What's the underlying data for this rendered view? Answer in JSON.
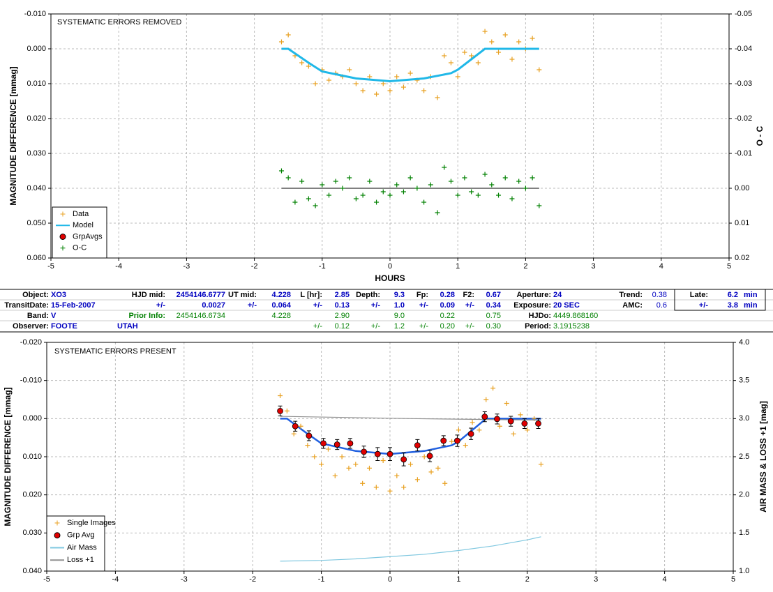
{
  "chart_data": [
    {
      "type": "scatter",
      "title": "SYSTEMATIC ERRORS REMOVED",
      "y_label": "MAGNITUDE DIFFERENCE [mmag]",
      "y2_label": "O - C",
      "x_label": "HOURS",
      "xlim": [
        -5,
        5
      ],
      "xticks": [
        -5,
        -4,
        -3,
        -2,
        -1,
        0,
        1,
        2,
        3,
        4,
        5
      ],
      "ylim": [
        -0.01,
        0.06
      ],
      "yticks": [
        {
          "value": -0.01,
          "label": "-0.010"
        },
        {
          "value": 0,
          "label": "0.000"
        },
        {
          "value": 0.01,
          "label": "0.010"
        },
        {
          "value": 0.02,
          "label": "0.020"
        },
        {
          "value": 0.03,
          "label": "0.030"
        },
        {
          "value": 0.04,
          "label": "0.040"
        },
        {
          "value": 0.05,
          "label": "0.050"
        },
        {
          "value": 0.06,
          "label": "0.060"
        }
      ],
      "y2lim": [
        -0.05,
        0.02
      ],
      "y2ticks": [
        {
          "value": -0.05,
          "label": "-0.05"
        },
        {
          "value": -0.04,
          "label": "-0.04"
        },
        {
          "value": -0.03,
          "label": "-0.03"
        },
        {
          "value": -0.02,
          "label": "-0.02"
        },
        {
          "value": -0.01,
          "label": "-0.01"
        },
        {
          "value": 0,
          "label": "0.00"
        },
        {
          "value": 0.01,
          "label": "0.01"
        },
        {
          "value": 0.02,
          "label": "0.02"
        }
      ],
      "grid": true,
      "legend": "lower left",
      "zero_line": {
        "axis": "y2",
        "value": 0,
        "color": "#000000"
      },
      "series": [
        {
          "name": "Data",
          "marker": "plus",
          "color": "#e8a020",
          "x": [
            -1.6,
            -1.5,
            -1.4,
            -1.3,
            -1.2,
            -1.1,
            -1.0,
            -0.9,
            -0.8,
            -0.7,
            -0.6,
            -0.5,
            -0.4,
            -0.3,
            -0.2,
            -0.1,
            0.0,
            0.1,
            0.2,
            0.3,
            0.4,
            0.5,
            0.6,
            0.7,
            0.8,
            0.9,
            1.0,
            1.1,
            1.2,
            1.3,
            1.4,
            1.5,
            1.6,
            1.7,
            1.8,
            1.9,
            2.0,
            2.1,
            2.2
          ],
          "values": [
            -0.002,
            -0.004,
            0.002,
            0.004,
            0.005,
            0.01,
            0.006,
            0.009,
            0.007,
            0.008,
            0.006,
            0.01,
            0.012,
            0.008,
            0.013,
            0.01,
            0.012,
            0.008,
            0.011,
            0.007,
            0.009,
            0.012,
            0.008,
            0.014,
            0.002,
            0.004,
            0.008,
            0.001,
            0.002,
            0.004,
            -0.005,
            -0.002,
            0.001,
            -0.004,
            0.003,
            -0.002,
            0,
            -0.003,
            0.006
          ]
        },
        {
          "name": "Model",
          "marker": "line",
          "color": "#20b8e8",
          "x": [
            -1.6,
            -1.5,
            -1.2,
            -1.0,
            -0.5,
            0,
            0.5,
            0.9,
            1.0,
            1.2,
            1.4,
            2.2
          ],
          "values": [
            0,
            0,
            0.004,
            0.0065,
            0.0085,
            0.0093,
            0.0085,
            0.007,
            0.006,
            0.003,
            0,
            0
          ]
        },
        {
          "name": "GrpAvgs",
          "marker": "circle",
          "color": "#e00000",
          "x": [],
          "values": []
        },
        {
          "name": "O-C",
          "marker": "plus",
          "color": "#008000",
          "axis": "y2",
          "x": [
            -1.6,
            -1.5,
            -1.4,
            -1.3,
            -1.2,
            -1.1,
            -1.0,
            -0.9,
            -0.8,
            -0.7,
            -0.6,
            -0.5,
            -0.4,
            -0.3,
            -0.2,
            -0.1,
            0.0,
            0.1,
            0.2,
            0.3,
            0.4,
            0.5,
            0.6,
            0.7,
            0.8,
            0.9,
            1.0,
            1.1,
            1.2,
            1.3,
            1.4,
            1.5,
            1.6,
            1.7,
            1.8,
            1.9,
            2.0,
            2.1,
            2.2
          ],
          "values": [
            -0.005,
            -0.003,
            0.004,
            -0.002,
            0.003,
            0.005,
            -0.001,
            0.002,
            -0.002,
            0,
            -0.003,
            0.003,
            0.002,
            -0.002,
            0.004,
            0.001,
            0.002,
            -0.001,
            0.001,
            -0.003,
            0,
            0.004,
            -0.001,
            0.007,
            -0.006,
            -0.002,
            0.002,
            -0.003,
            0.001,
            0.002,
            -0.004,
            -0.001,
            0.002,
            -0.003,
            0.003,
            -0.002,
            0,
            -0.003,
            0.005
          ]
        }
      ]
    },
    {
      "type": "scatter",
      "title": "SYSTEMATIC ERRORS PRESENT",
      "y_label": "MAGNITUDE DIFFERENCE [mmag]",
      "y2_label": "AIR MASS & LOSS +1 [mag]",
      "xlim": [
        -5,
        5
      ],
      "xticks": [
        -5,
        -4,
        -3,
        -2,
        -1,
        0,
        1,
        2,
        3,
        4,
        5
      ],
      "ylim": [
        -0.02,
        0.04
      ],
      "yticks": [
        {
          "value": -0.02,
          "label": "-0.020"
        },
        {
          "value": -0.01,
          "label": "-0.010"
        },
        {
          "value": 0,
          "label": "0.000"
        },
        {
          "value": 0.01,
          "label": "0.010"
        },
        {
          "value": 0.02,
          "label": "0.020"
        },
        {
          "value": 0.03,
          "label": "0.030"
        },
        {
          "value": 0.04,
          "label": "0.040"
        }
      ],
      "y2lim": [
        4.0,
        1.0
      ],
      "y2ticks": [
        {
          "value": 4.0,
          "label": "4.0"
        },
        {
          "value": 3.5,
          "label": "3.5"
        },
        {
          "value": 3.0,
          "label": "3.0"
        },
        {
          "value": 2.5,
          "label": "2.5"
        },
        {
          "value": 2.0,
          "label": "2.0"
        },
        {
          "value": 1.5,
          "label": "1.5"
        },
        {
          "value": 1.0,
          "label": "1.0"
        }
      ],
      "grid": true,
      "legend": "lower left",
      "model": {
        "color": "#2060e0",
        "x": [
          -1.6,
          -1.5,
          -1.2,
          -1.0,
          -0.5,
          0,
          0.5,
          0.9,
          1.0,
          1.2,
          1.4,
          2.2
        ],
        "values": [
          0,
          0,
          0.004,
          0.0065,
          0.0085,
          0.0093,
          0.0085,
          0.007,
          0.006,
          0.003,
          0,
          0
        ]
      },
      "series": [
        {
          "name": "Single Images",
          "marker": "plus",
          "color": "#e8a020",
          "x": [
            -1.6,
            -1.5,
            -1.4,
            -1.3,
            -1.2,
            -1.1,
            -1.0,
            -0.9,
            -0.8,
            -0.7,
            -0.6,
            -0.5,
            -0.4,
            -0.3,
            -0.2,
            -0.1,
            0.0,
            0.1,
            0.2,
            0.3,
            0.4,
            0.5,
            0.6,
            0.7,
            0.8,
            0.9,
            1.0,
            1.1,
            1.2,
            1.3,
            1.4,
            1.5,
            1.6,
            1.7,
            1.8,
            1.9,
            2.0,
            2.1,
            2.2
          ],
          "values": [
            -0.006,
            -0.002,
            0.004,
            0.002,
            0.007,
            0.01,
            0.012,
            0.008,
            0.015,
            0.01,
            0.013,
            0.012,
            0.017,
            0.013,
            0.018,
            0.011,
            0.019,
            0.015,
            0.018,
            0.012,
            0.016,
            0.01,
            0.014,
            0.013,
            0.017,
            0.006,
            0.003,
            0.007,
            0.001,
            0.003,
            -0.005,
            -0.008,
            0.002,
            -0.004,
            0.004,
            -0.001,
            0.003,
            0,
            0.012
          ]
        },
        {
          "name": "Grp Avg",
          "marker": "circle",
          "color": "#e00000",
          "x": [
            -1.6,
            -1.38,
            -1.18,
            -0.97,
            -0.77,
            -0.58,
            -0.38,
            -0.18,
            0.0,
            0.2,
            0.4,
            0.58,
            0.78,
            0.98,
            1.18,
            1.38,
            1.56,
            1.76,
            1.96,
            2.16
          ],
          "values": [
            -0.002,
            0.002,
            0.0045,
            0.0065,
            0.0068,
            0.0065,
            0.0087,
            0.0093,
            0.0093,
            0.0107,
            0.007,
            0.0098,
            0.0058,
            0.0058,
            0.004,
            -0.0005,
            0.0001,
            0.0007,
            0.0013,
            0.0013
          ],
          "errors": [
            0.0013,
            0.0013,
            0.0013,
            0.0013,
            0.0013,
            0.0013,
            0.0015,
            0.0017,
            0.0017,
            0.0017,
            0.0015,
            0.0015,
            0.0013,
            0.0015,
            0.0015,
            0.0013,
            0.0013,
            0.0013,
            0.0013,
            0.0013
          ]
        },
        {
          "name": "Air Mass",
          "marker": "line",
          "color": "#80c8e0",
          "axis": "y2",
          "x": [
            -1.6,
            -1.0,
            -0.5,
            0,
            0.5,
            1.0,
            1.5,
            2.0,
            2.2
          ],
          "values": [
            1.13,
            1.14,
            1.16,
            1.19,
            1.22,
            1.27,
            1.33,
            1.41,
            1.45
          ]
        },
        {
          "name": "Loss +1",
          "marker": "line",
          "color": "#909090",
          "axis": "y2",
          "x": [
            -1.6,
            0.3,
            2.2
          ],
          "values": [
            3.03,
            3.0,
            2.98
          ]
        }
      ]
    }
  ],
  "table": {
    "rows": [
      [
        "Object:",
        "XO3",
        "HJD mid:",
        "2454146.6777",
        "UT mid:",
        "4.228",
        "L [hr]:",
        "2.85",
        "Depth:",
        "9.3",
        "Fp:",
        "0.28",
        "F2:",
        "0.67",
        "Aperture:",
        "24",
        "Trend:",
        "0.38",
        "Late:",
        "6.2",
        "min"
      ],
      [
        "TransitDate:",
        "15-Feb-2007",
        "+/-",
        "0.0027",
        "+/-",
        "0.064",
        "+/-",
        "0.13",
        "+/-",
        "1.0",
        "+/-",
        "0.09",
        "+/-",
        "0.34",
        "Exposure:",
        "20 SEC",
        "AMC:",
        "0.6",
        "+/-",
        "3.8",
        "min"
      ],
      [
        "Band:",
        "V",
        "Prior Info:",
        "2454146.6734",
        "4.228",
        "2.90",
        "9.0",
        "0.22",
        "0.75",
        "HJDo:",
        "4449.868160"
      ],
      [
        "Observer:",
        "FOOTE",
        "UTAH",
        "+/-",
        "0.12",
        "+/-",
        "1.2",
        "+/-",
        "0.20",
        "+/-",
        "0.30",
        "Period:",
        "3.1915238"
      ]
    ]
  }
}
